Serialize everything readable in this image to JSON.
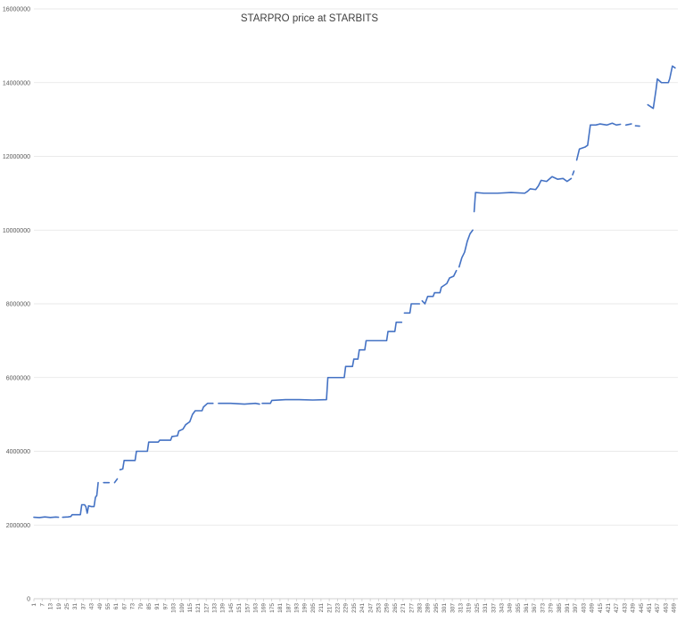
{
  "chart_data": {
    "type": "line",
    "title": "STARPRO price at STARBITS",
    "xlabel": "",
    "ylabel": "",
    "ylim": [
      0,
      16000000
    ],
    "y_ticks": [
      "0",
      "2000000",
      "4000000",
      "6000000",
      "8000000",
      "10000000",
      "12000000",
      "14000000",
      "16000000"
    ],
    "x_range": [
      1,
      472
    ],
    "x_ticks": [
      "1",
      "7",
      "13",
      "19",
      "25",
      "31",
      "37",
      "43",
      "49",
      "55",
      "61",
      "67",
      "73",
      "79",
      "85",
      "91",
      "97",
      "103",
      "109",
      "115",
      "121",
      "127",
      "133",
      "139",
      "145",
      "151",
      "157",
      "163",
      "169",
      "175",
      "181",
      "187",
      "193",
      "199",
      "205",
      "211",
      "217",
      "223",
      "229",
      "235",
      "241",
      "247",
      "253",
      "259",
      "265",
      "271",
      "277",
      "283",
      "289",
      "295",
      "301",
      "307",
      "313",
      "319",
      "325",
      "331",
      "337",
      "343",
      "349",
      "355",
      "361",
      "367",
      "373",
      "379",
      "385",
      "391",
      "397",
      "403",
      "409",
      "415",
      "421",
      "427",
      "433",
      "439",
      "445",
      "451",
      "457",
      "463",
      "469"
    ],
    "grid": "horizontal",
    "legend": "none",
    "series_color": "#4472C4",
    "segments": [
      [
        [
          1,
          2210000
        ],
        [
          5,
          2200000
        ],
        [
          9,
          2220000
        ],
        [
          13,
          2205000
        ],
        [
          17,
          2215000
        ],
        [
          19,
          2210000
        ]
      ],
      [
        [
          22,
          2210000
        ],
        [
          26,
          2220000
        ],
        [
          28,
          2230000
        ],
        [
          29,
          2280000
        ],
        [
          32,
          2280000
        ],
        [
          35,
          2280000
        ],
        [
          36,
          2550000
        ],
        [
          38,
          2550000
        ],
        [
          39,
          2500000
        ],
        [
          40,
          2320000
        ],
        [
          41,
          2520000
        ],
        [
          43,
          2500000
        ],
        [
          45,
          2500000
        ],
        [
          46,
          2750000
        ],
        [
          47,
          2800000
        ],
        [
          48,
          3150000
        ]
      ],
      [
        [
          52,
          3150000
        ],
        [
          56,
          3150000
        ]
      ],
      [
        [
          60,
          3150000
        ],
        [
          62,
          3250000
        ]
      ],
      [
        [
          64,
          3500000
        ],
        [
          66,
          3520000
        ],
        [
          67,
          3750000
        ],
        [
          75,
          3750000
        ],
        [
          76,
          4000000
        ],
        [
          84,
          4000000
        ],
        [
          85,
          4250000
        ],
        [
          92,
          4250000
        ],
        [
          93,
          4300000
        ],
        [
          101,
          4300000
        ],
        [
          102,
          4400000
        ],
        [
          106,
          4420000
        ],
        [
          107,
          4550000
        ],
        [
          110,
          4600000
        ],
        [
          112,
          4720000
        ],
        [
          115,
          4800000
        ],
        [
          117,
          5000000
        ],
        [
          119,
          5100000
        ],
        [
          124,
          5100000
        ],
        [
          125,
          5200000
        ],
        [
          128,
          5300000
        ],
        [
          132,
          5300000
        ]
      ],
      [
        [
          136,
          5300000
        ],
        [
          145,
          5300000
        ],
        [
          155,
          5280000
        ],
        [
          163,
          5300000
        ],
        [
          166,
          5280000
        ]
      ],
      [
        [
          168,
          5300000
        ],
        [
          174,
          5300000
        ],
        [
          175,
          5380000
        ],
        [
          185,
          5400000
        ],
        [
          195,
          5400000
        ],
        [
          205,
          5390000
        ],
        [
          215,
          5400000
        ],
        [
          216,
          6000000
        ],
        [
          228,
          6000000
        ],
        [
          229,
          6300000
        ],
        [
          234,
          6300000
        ],
        [
          235,
          6500000
        ],
        [
          238,
          6500000
        ],
        [
          239,
          6750000
        ],
        [
          243,
          6750000
        ],
        [
          244,
          7000000
        ],
        [
          259,
          7000000
        ],
        [
          260,
          7250000
        ],
        [
          265,
          7250000
        ],
        [
          266,
          7500000
        ],
        [
          270,
          7500000
        ]
      ],
      [
        [
          272,
          7750000
        ],
        [
          276,
          7750000
        ],
        [
          277,
          8000000
        ],
        [
          283,
          8000000
        ]
      ],
      [
        [
          285,
          8080000
        ],
        [
          287,
          8000000
        ],
        [
          289,
          8200000
        ],
        [
          293,
          8200000
        ],
        [
          294,
          8300000
        ],
        [
          298,
          8300000
        ],
        [
          299,
          8450000
        ],
        [
          303,
          8550000
        ],
        [
          305,
          8700000
        ],
        [
          308,
          8750000
        ],
        [
          310,
          8900000
        ]
      ],
      [
        [
          312,
          9000000
        ],
        [
          314,
          9250000
        ],
        [
          316,
          9400000
        ],
        [
          318,
          9700000
        ],
        [
          320,
          9900000
        ],
        [
          322,
          10000000
        ]
      ],
      [
        [
          323,
          10500000
        ],
        [
          324,
          11020000
        ],
        [
          330,
          11000000
        ],
        [
          340,
          11000000
        ],
        [
          350,
          11020000
        ],
        [
          360,
          11000000
        ],
        [
          362,
          11050000
        ],
        [
          364,
          11120000
        ],
        [
          368,
          11100000
        ],
        [
          370,
          11200000
        ],
        [
          372,
          11350000
        ],
        [
          376,
          11320000
        ],
        [
          380,
          11450000
        ],
        [
          384,
          11380000
        ],
        [
          388,
          11400000
        ],
        [
          391,
          11320000
        ],
        [
          394,
          11400000
        ]
      ],
      [
        [
          395,
          11500000
        ],
        [
          396,
          11600000
        ]
      ],
      [
        [
          398,
          11900000
        ],
        [
          400,
          12200000
        ],
        [
          404,
          12250000
        ],
        [
          406,
          12300000
        ],
        [
          408,
          12850000
        ],
        [
          412,
          12850000
        ],
        [
          415,
          12880000
        ],
        [
          420,
          12850000
        ],
        [
          424,
          12900000
        ],
        [
          427,
          12850000
        ],
        [
          430,
          12870000
        ]
      ],
      [
        [
          434,
          12850000
        ],
        [
          438,
          12880000
        ]
      ],
      [
        [
          441,
          12830000
        ],
        [
          444,
          12820000
        ]
      ],
      [
        [
          450,
          13400000
        ],
        [
          454,
          13300000
        ],
        [
          456,
          13800000
        ],
        [
          457,
          14100000
        ],
        [
          460,
          14000000
        ],
        [
          465,
          14000000
        ],
        [
          466,
          14100000
        ],
        [
          468,
          14450000
        ],
        [
          470,
          14400000
        ]
      ]
    ]
  }
}
